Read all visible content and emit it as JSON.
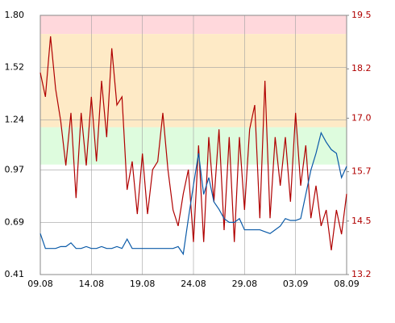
{
  "chart_data": {
    "type": "line",
    "xlim": [
      0,
      30
    ],
    "xticks": [
      {
        "value": 0,
        "label": "09.08"
      },
      {
        "value": 5,
        "label": "14.08"
      },
      {
        "value": 10,
        "label": "19.08"
      },
      {
        "value": 15,
        "label": "24.08"
      },
      {
        "value": 20,
        "label": "29.08"
      },
      {
        "value": 25,
        "label": "03.09"
      },
      {
        "value": 30,
        "label": "08.09"
      }
    ],
    "ylim": [
      0.41,
      1.8
    ],
    "yticks": [
      0.41,
      0.69,
      0.97,
      1.24,
      1.52,
      {
        "value": 1.8,
        "label": "1.80"
      }
    ],
    "y2lim": [
      13.2,
      19.5
    ],
    "y2ticks": [
      13.2,
      14.5,
      15.7,
      {
        "value": 17,
        "label": "17.0"
      },
      18.2,
      19.5
    ],
    "grid": true,
    "bands": [
      {
        "from": 1.7,
        "to": 1.8,
        "color": "#ffd8dc"
      },
      {
        "from": 1.2,
        "to": 1.7,
        "color": "#feeac6"
      },
      {
        "from": 1.0,
        "to": 1.2,
        "color": "#defcde"
      }
    ],
    "x": [
      0,
      0.5,
      1,
      1.5,
      2,
      2.5,
      3,
      3.5,
      4,
      4.5,
      5,
      5.5,
      6,
      6.5,
      7,
      7.5,
      8,
      8.5,
      9,
      9.5,
      10,
      10.5,
      11,
      11.5,
      12,
      12.5,
      13,
      13.5,
      14,
      14.5,
      15,
      15.5,
      16,
      16.5,
      17,
      17.5,
      18,
      18.5,
      19,
      19.5,
      20,
      20.5,
      21,
      21.5,
      22,
      22.5,
      23,
      23.5,
      24,
      24.5,
      25,
      25.5,
      26,
      26.5,
      27,
      27.5,
      28,
      28.5,
      29,
      29.5,
      30
    ],
    "series": [
      {
        "color": "#b00000",
        "axis": "y2",
        "values": [
          18.11,
          17.52,
          18.99,
          17.71,
          16.93,
          15.85,
          17.13,
          15.06,
          17.13,
          15.85,
          17.52,
          15.95,
          17.91,
          16.54,
          18.7,
          17.32,
          17.52,
          15.26,
          15.95,
          14.67,
          16.14,
          14.67,
          15.75,
          15.95,
          17.13,
          15.75,
          14.77,
          14.38,
          15.16,
          15.75,
          13.99,
          16.34,
          13.99,
          16.54,
          14.97,
          16.73,
          14.28,
          16.54,
          13.99,
          16.54,
          14.77,
          16.73,
          17.32,
          14.57,
          17.91,
          14.57,
          16.54,
          15.36,
          16.54,
          14.97,
          17.13,
          15.36,
          16.34,
          14.57,
          15.36,
          14.38,
          14.77,
          13.79,
          14.77,
          14.18,
          15.16
        ]
      },
      {
        "color": "#0a5aa8",
        "values": [
          0.63,
          0.55,
          0.55,
          0.55,
          0.56,
          0.56,
          0.58,
          0.55,
          0.55,
          0.56,
          0.55,
          0.55,
          0.56,
          0.55,
          0.55,
          0.56,
          0.55,
          0.6,
          0.55,
          0.55,
          0.55,
          0.55,
          0.55,
          0.55,
          0.55,
          0.55,
          0.55,
          0.56,
          0.52,
          0.71,
          0.89,
          1.06,
          0.84,
          0.93,
          0.8,
          0.76,
          0.71,
          0.69,
          0.69,
          0.71,
          0.65,
          0.65,
          0.65,
          0.65,
          0.64,
          0.63,
          0.65,
          0.67,
          0.71,
          0.7,
          0.7,
          0.71,
          0.84,
          0.97,
          1.06,
          1.17,
          1.12,
          1.08,
          1.06,
          0.93,
          0.99
        ]
      }
    ]
  }
}
